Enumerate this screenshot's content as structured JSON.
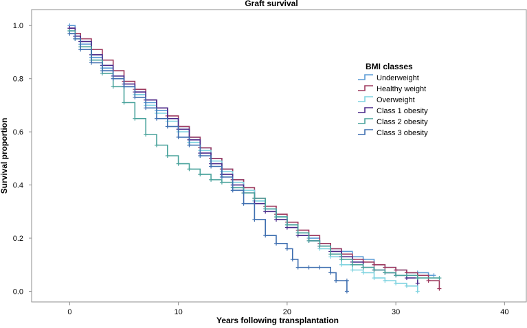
{
  "chart_data": {
    "type": "line",
    "title": "Graft survival",
    "xlabel": "Years following transplantation",
    "ylabel": "Survival proportion",
    "xlim": [
      -3.5,
      42
    ],
    "ylim": [
      -0.04,
      1.06
    ],
    "x_ticks": [
      0,
      10,
      20,
      30,
      40
    ],
    "y_ticks": [
      0.0,
      0.2,
      0.4,
      0.6,
      0.8,
      1.0
    ],
    "x_tick_labels": [
      "0",
      "10",
      "20",
      "30",
      "40"
    ],
    "y_tick_labels": [
      "0.0",
      "0.2",
      "0.4",
      "0.6",
      "0.8",
      "1.0"
    ],
    "grid": false,
    "legend": {
      "title": "BMI classes",
      "position": "upper-right"
    },
    "series": [
      {
        "name": "Underweight",
        "color": "#5a9bd5",
        "points": [
          [
            0,
            1.0
          ],
          [
            0.5,
            0.96
          ],
          [
            1,
            0.93
          ],
          [
            2,
            0.88
          ],
          [
            3,
            0.84
          ],
          [
            4,
            0.8
          ],
          [
            5,
            0.77
          ],
          [
            6,
            0.74
          ],
          [
            7,
            0.71
          ],
          [
            8,
            0.68
          ],
          [
            9,
            0.65
          ],
          [
            10,
            0.62
          ],
          [
            11,
            0.58
          ],
          [
            12,
            0.54
          ],
          [
            13,
            0.5
          ],
          [
            14,
            0.46
          ],
          [
            15,
            0.42
          ],
          [
            16,
            0.38
          ],
          [
            17,
            0.34
          ],
          [
            18,
            0.31
          ],
          [
            19,
            0.28
          ],
          [
            20,
            0.25
          ],
          [
            21,
            0.22
          ],
          [
            22,
            0.2
          ],
          [
            23,
            0.18
          ],
          [
            24,
            0.16
          ],
          [
            25,
            0.15
          ],
          [
            26,
            0.13
          ],
          [
            27,
            0.12
          ],
          [
            28,
            0.1
          ],
          [
            29,
            0.09
          ],
          [
            30,
            0.08
          ],
          [
            31,
            0.07
          ],
          [
            32,
            0.07
          ],
          [
            33,
            0.06
          ],
          [
            33.5,
            0.06
          ]
        ]
      },
      {
        "name": "Healthy weight",
        "color": "#9e3a5f",
        "points": [
          [
            0,
            0.99
          ],
          [
            0.5,
            0.97
          ],
          [
            1,
            0.95
          ],
          [
            2,
            0.91
          ],
          [
            3,
            0.87
          ],
          [
            4,
            0.83
          ],
          [
            5,
            0.79
          ],
          [
            6,
            0.76
          ],
          [
            7,
            0.72
          ],
          [
            8,
            0.69
          ],
          [
            9,
            0.66
          ],
          [
            10,
            0.62
          ],
          [
            11,
            0.58
          ],
          [
            12,
            0.54
          ],
          [
            13,
            0.5
          ],
          [
            14,
            0.46
          ],
          [
            15,
            0.42
          ],
          [
            16,
            0.39
          ],
          [
            17,
            0.35
          ],
          [
            18,
            0.32
          ],
          [
            19,
            0.29
          ],
          [
            20,
            0.26
          ],
          [
            21,
            0.23
          ],
          [
            22,
            0.21
          ],
          [
            23,
            0.18
          ],
          [
            24,
            0.16
          ],
          [
            25,
            0.14
          ],
          [
            26,
            0.12
          ],
          [
            27,
            0.11
          ],
          [
            28,
            0.1
          ],
          [
            29,
            0.09
          ],
          [
            30,
            0.08
          ],
          [
            31,
            0.07
          ],
          [
            32,
            0.06
          ],
          [
            33,
            0.04
          ],
          [
            34,
            0.01
          ]
        ]
      },
      {
        "name": "Overweight",
        "color": "#7fd3e0",
        "points": [
          [
            0,
            0.98
          ],
          [
            0.5,
            0.96
          ],
          [
            1,
            0.94
          ],
          [
            2,
            0.89
          ],
          [
            3,
            0.85
          ],
          [
            4,
            0.81
          ],
          [
            5,
            0.77
          ],
          [
            6,
            0.74
          ],
          [
            7,
            0.7
          ],
          [
            8,
            0.67
          ],
          [
            9,
            0.64
          ],
          [
            10,
            0.6
          ],
          [
            11,
            0.56
          ],
          [
            12,
            0.53
          ],
          [
            13,
            0.49
          ],
          [
            14,
            0.45
          ],
          [
            15,
            0.41
          ],
          [
            16,
            0.38
          ],
          [
            17,
            0.34
          ],
          [
            18,
            0.31
          ],
          [
            19,
            0.28
          ],
          [
            20,
            0.25
          ],
          [
            21,
            0.22
          ],
          [
            22,
            0.19
          ],
          [
            23,
            0.16
          ],
          [
            24,
            0.13
          ],
          [
            25,
            0.1
          ],
          [
            26,
            0.08
          ],
          [
            27,
            0.07
          ],
          [
            28,
            0.05
          ],
          [
            29,
            0.04
          ],
          [
            30,
            0.03
          ],
          [
            31,
            0.02
          ],
          [
            32,
            0.0
          ]
        ]
      },
      {
        "name": "Class 1 obesity",
        "color": "#4b2a8a",
        "points": [
          [
            0,
            0.99
          ],
          [
            0.5,
            0.96
          ],
          [
            1,
            0.94
          ],
          [
            2,
            0.89
          ],
          [
            3,
            0.85
          ],
          [
            4,
            0.81
          ],
          [
            5,
            0.78
          ],
          [
            6,
            0.75
          ],
          [
            7,
            0.72
          ],
          [
            8,
            0.69
          ],
          [
            9,
            0.65
          ],
          [
            10,
            0.61
          ],
          [
            11,
            0.57
          ],
          [
            12,
            0.52
          ],
          [
            13,
            0.48
          ],
          [
            14,
            0.44
          ],
          [
            15,
            0.4
          ],
          [
            16,
            0.37
          ],
          [
            17,
            0.33
          ],
          [
            18,
            0.3
          ],
          [
            19,
            0.27
          ],
          [
            20,
            0.24
          ],
          [
            21,
            0.21
          ],
          [
            22,
            0.19
          ],
          [
            23,
            0.17
          ],
          [
            24,
            0.15
          ],
          [
            25,
            0.13
          ],
          [
            26,
            0.11
          ],
          [
            27,
            0.09
          ],
          [
            28,
            0.08
          ],
          [
            29,
            0.07
          ],
          [
            30,
            0.06
          ],
          [
            31,
            0.05
          ],
          [
            32,
            0.03
          ]
        ]
      },
      {
        "name": "Class 2 obesity",
        "color": "#4aa39c",
        "points": [
          [
            0,
            0.98
          ],
          [
            0.5,
            0.95
          ],
          [
            1,
            0.92
          ],
          [
            2,
            0.87
          ],
          [
            3,
            0.82
          ],
          [
            4,
            0.77
          ],
          [
            5,
            0.71
          ],
          [
            6,
            0.65
          ],
          [
            7,
            0.59
          ],
          [
            8,
            0.55
          ],
          [
            9,
            0.51
          ],
          [
            10,
            0.48
          ],
          [
            11,
            0.46
          ],
          [
            12,
            0.44
          ],
          [
            13,
            0.42
          ],
          [
            14,
            0.41
          ],
          [
            15,
            0.39
          ],
          [
            16,
            0.37
          ],
          [
            17,
            0.35
          ],
          [
            18,
            0.31
          ],
          [
            19,
            0.28
          ],
          [
            20,
            0.25
          ],
          [
            21,
            0.22
          ],
          [
            22,
            0.19
          ],
          [
            23,
            0.17
          ],
          [
            24,
            0.14
          ],
          [
            25,
            0.12
          ],
          [
            26,
            0.1
          ],
          [
            27,
            0.09
          ],
          [
            28,
            0.08
          ],
          [
            29,
            0.07
          ],
          [
            30,
            0.06
          ],
          [
            31,
            0.06
          ],
          [
            32,
            0.05
          ],
          [
            34,
            0.05
          ]
        ]
      },
      {
        "name": "Class 3 obesity",
        "color": "#3f6fb0",
        "points": [
          [
            0,
            0.97
          ],
          [
            0.5,
            0.95
          ],
          [
            1,
            0.91
          ],
          [
            2,
            0.86
          ],
          [
            3,
            0.83
          ],
          [
            4,
            0.8
          ],
          [
            5,
            0.77
          ],
          [
            6,
            0.73
          ],
          [
            7,
            0.69
          ],
          [
            8,
            0.65
          ],
          [
            9,
            0.62
          ],
          [
            10,
            0.58
          ],
          [
            11,
            0.55
          ],
          [
            12,
            0.51
          ],
          [
            13,
            0.47
          ],
          [
            14,
            0.43
          ],
          [
            15,
            0.38
          ],
          [
            16,
            0.33
          ],
          [
            17,
            0.27
          ],
          [
            18,
            0.21
          ],
          [
            19,
            0.18
          ],
          [
            20,
            0.16
          ],
          [
            20.5,
            0.12
          ],
          [
            21,
            0.09
          ],
          [
            22,
            0.09
          ],
          [
            23,
            0.09
          ],
          [
            24,
            0.07
          ],
          [
            24.5,
            0.04
          ],
          [
            25.5,
            0.04
          ],
          [
            25.5,
            0.0
          ]
        ]
      }
    ]
  }
}
